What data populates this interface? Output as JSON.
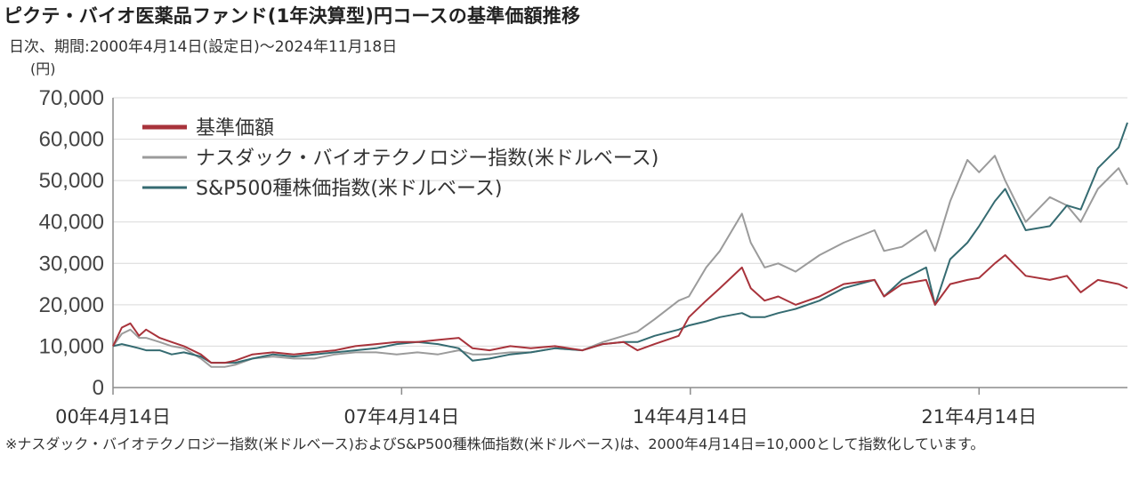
{
  "page": {
    "title": "ピクテ・バイオ医薬品ファンド(1年決算型)円コースの基準価額推移",
    "subtitle": "日次、期間:2000年4月14日(設定日)～2024年11月18日",
    "unit": "(円)",
    "footnote": "※ナスダック・バイオテクノロジー指数(米ドルベース)およびS&P500種株価指数(米ドルベース)は、2000年4月14日=10,000として指数化しています。"
  },
  "colors": {
    "nav": "#a8333b",
    "nasdaq": "#9b9b9b",
    "sp500": "#356b71",
    "grid": "#d9d9d9",
    "axis": "#8c8c8c"
  },
  "chart_data": {
    "type": "line",
    "x_unit": "date",
    "y_unit": "円",
    "ylim": [
      0,
      70000
    ],
    "xlim": [
      "2000-04-14",
      "2024-11-18"
    ],
    "y_ticks": [
      0,
      10000,
      20000,
      30000,
      40000,
      50000,
      60000,
      70000
    ],
    "y_tick_labels": [
      "0",
      "10,000",
      "20,000",
      "30,000",
      "40,000",
      "50,000",
      "60,000",
      "70,000"
    ],
    "x_ticks": [
      "2000-04-14",
      "2007-04-14",
      "2014-04-14",
      "2021-04-14"
    ],
    "x_tick_labels": [
      "00年4月14日",
      "07年4月14日",
      "14年4月14日",
      "21年4月14日"
    ],
    "grid": "horizontal",
    "legend_position": "top-left",
    "series": [
      {
        "name": "基準価額",
        "key": "nav",
        "points": [
          [
            "2000-04-14",
            10000
          ],
          [
            "2000-07-01",
            14500
          ],
          [
            "2000-09-15",
            15500
          ],
          [
            "2000-12-01",
            12500
          ],
          [
            "2001-02-01",
            14000
          ],
          [
            "2001-06-01",
            12000
          ],
          [
            "2001-09-15",
            11000
          ],
          [
            "2002-01-01",
            10000
          ],
          [
            "2002-06-01",
            8000
          ],
          [
            "2002-09-01",
            6000
          ],
          [
            "2003-01-01",
            6000
          ],
          [
            "2003-04-01",
            6500
          ],
          [
            "2003-09-01",
            8000
          ],
          [
            "2004-03-01",
            8500
          ],
          [
            "2004-09-01",
            8000
          ],
          [
            "2005-03-01",
            8500
          ],
          [
            "2005-09-01",
            9000
          ],
          [
            "2006-03-01",
            10000
          ],
          [
            "2006-09-01",
            10500
          ],
          [
            "2007-03-01",
            11000
          ],
          [
            "2007-09-01",
            11000
          ],
          [
            "2008-03-01",
            11500
          ],
          [
            "2008-09-01",
            12000
          ],
          [
            "2009-01-01",
            9500
          ],
          [
            "2009-06-01",
            9000
          ],
          [
            "2009-12-01",
            10000
          ],
          [
            "2010-06-01",
            9500
          ],
          [
            "2011-01-01",
            10000
          ],
          [
            "2011-09-01",
            9000
          ],
          [
            "2012-03-01",
            10500
          ],
          [
            "2012-09-01",
            11000
          ],
          [
            "2013-01-01",
            9000
          ],
          [
            "2013-06-01",
            10500
          ],
          [
            "2014-01-01",
            12500
          ],
          [
            "2014-04-01",
            17000
          ],
          [
            "2014-09-01",
            21000
          ],
          [
            "2015-01-01",
            24000
          ],
          [
            "2015-07-15",
            29000
          ],
          [
            "2015-10-01",
            24000
          ],
          [
            "2016-02-01",
            21000
          ],
          [
            "2016-06-01",
            22000
          ],
          [
            "2016-11-01",
            20000
          ],
          [
            "2017-06-01",
            22000
          ],
          [
            "2018-01-01",
            25000
          ],
          [
            "2018-10-01",
            26000
          ],
          [
            "2018-12-25",
            22000
          ],
          [
            "2019-06-01",
            25000
          ],
          [
            "2020-01-01",
            26000
          ],
          [
            "2020-03-20",
            20000
          ],
          [
            "2020-08-01",
            25000
          ],
          [
            "2021-01-01",
            26000
          ],
          [
            "2021-04-14",
            26500
          ],
          [
            "2021-09-01",
            30000
          ],
          [
            "2021-12-01",
            32000
          ],
          [
            "2022-06-01",
            27000
          ],
          [
            "2023-01-01",
            26000
          ],
          [
            "2023-06-01",
            27000
          ],
          [
            "2023-10-01",
            23000
          ],
          [
            "2024-03-01",
            26000
          ],
          [
            "2024-09-01",
            25000
          ],
          [
            "2024-11-18",
            24000
          ]
        ]
      },
      {
        "name": "ナスダック・バイオテクノロジー指数(米ドルベース)",
        "key": "nasdaq",
        "points": [
          [
            "2000-04-14",
            10000
          ],
          [
            "2000-07-01",
            13000
          ],
          [
            "2000-09-15",
            14000
          ],
          [
            "2000-12-01",
            12000
          ],
          [
            "2001-02-01",
            12000
          ],
          [
            "2001-06-01",
            11000
          ],
          [
            "2001-09-15",
            10000
          ],
          [
            "2002-01-01",
            9500
          ],
          [
            "2002-06-01",
            7000
          ],
          [
            "2002-09-01",
            5000
          ],
          [
            "2003-01-01",
            5000
          ],
          [
            "2003-04-01",
            5500
          ],
          [
            "2003-09-01",
            7000
          ],
          [
            "2004-03-01",
            7500
          ],
          [
            "2004-09-01",
            7000
          ],
          [
            "2005-03-01",
            7000
          ],
          [
            "2005-09-01",
            8000
          ],
          [
            "2006-03-01",
            8500
          ],
          [
            "2006-09-01",
            8500
          ],
          [
            "2007-03-01",
            8000
          ],
          [
            "2007-09-01",
            8500
          ],
          [
            "2008-03-01",
            8000
          ],
          [
            "2008-09-01",
            9000
          ],
          [
            "2009-01-01",
            8000
          ],
          [
            "2009-06-01",
            8000
          ],
          [
            "2009-12-01",
            8500
          ],
          [
            "2010-06-01",
            8500
          ],
          [
            "2011-01-01",
            9500
          ],
          [
            "2011-09-01",
            9000
          ],
          [
            "2012-03-01",
            11000
          ],
          [
            "2012-09-01",
            12500
          ],
          [
            "2013-01-01",
            13500
          ],
          [
            "2013-06-01",
            16500
          ],
          [
            "2014-01-01",
            21000
          ],
          [
            "2014-04-01",
            22000
          ],
          [
            "2014-09-01",
            29000
          ],
          [
            "2015-01-01",
            33000
          ],
          [
            "2015-07-15",
            42000
          ],
          [
            "2015-10-01",
            35000
          ],
          [
            "2016-02-01",
            29000
          ],
          [
            "2016-06-01",
            30000
          ],
          [
            "2016-11-01",
            28000
          ],
          [
            "2017-06-01",
            32000
          ],
          [
            "2018-01-01",
            35000
          ],
          [
            "2018-10-01",
            38000
          ],
          [
            "2018-12-25",
            33000
          ],
          [
            "2019-06-01",
            34000
          ],
          [
            "2020-01-01",
            38000
          ],
          [
            "2020-03-20",
            33000
          ],
          [
            "2020-08-01",
            45000
          ],
          [
            "2021-01-01",
            55000
          ],
          [
            "2021-04-14",
            52000
          ],
          [
            "2021-09-01",
            56000
          ],
          [
            "2021-12-01",
            50000
          ],
          [
            "2022-06-01",
            40000
          ],
          [
            "2023-01-01",
            46000
          ],
          [
            "2023-06-01",
            44000
          ],
          [
            "2023-10-01",
            40000
          ],
          [
            "2024-03-01",
            48000
          ],
          [
            "2024-09-01",
            53000
          ],
          [
            "2024-11-18",
            49000
          ]
        ]
      },
      {
        "name": "S&P500種株価指数(米ドルベース)",
        "key": "sp500",
        "points": [
          [
            "2000-04-14",
            10000
          ],
          [
            "2000-07-01",
            10500
          ],
          [
            "2000-09-15",
            10000
          ],
          [
            "2000-12-01",
            9500
          ],
          [
            "2001-02-01",
            9000
          ],
          [
            "2001-06-01",
            9000
          ],
          [
            "2001-09-15",
            8000
          ],
          [
            "2002-01-01",
            8500
          ],
          [
            "2002-06-01",
            7500
          ],
          [
            "2002-09-01",
            6000
          ],
          [
            "2003-01-01",
            6000
          ],
          [
            "2003-04-01",
            6000
          ],
          [
            "2003-09-01",
            7000
          ],
          [
            "2004-03-01",
            8000
          ],
          [
            "2004-09-01",
            7500
          ],
          [
            "2005-03-01",
            8000
          ],
          [
            "2005-09-01",
            8500
          ],
          [
            "2006-03-01",
            9000
          ],
          [
            "2006-09-01",
            9500
          ],
          [
            "2007-03-01",
            10500
          ],
          [
            "2007-09-01",
            11000
          ],
          [
            "2008-03-01",
            10500
          ],
          [
            "2008-09-01",
            9500
          ],
          [
            "2009-01-01",
            6500
          ],
          [
            "2009-06-01",
            7000
          ],
          [
            "2009-12-01",
            8000
          ],
          [
            "2010-06-01",
            8500
          ],
          [
            "2011-01-01",
            9500
          ],
          [
            "2011-09-01",
            9000
          ],
          [
            "2012-03-01",
            10500
          ],
          [
            "2012-09-01",
            11000
          ],
          [
            "2013-01-01",
            11000
          ],
          [
            "2013-06-01",
            12500
          ],
          [
            "2014-01-01",
            14000
          ],
          [
            "2014-04-01",
            15000
          ],
          [
            "2014-09-01",
            16000
          ],
          [
            "2015-01-01",
            17000
          ],
          [
            "2015-07-15",
            18000
          ],
          [
            "2015-10-01",
            17000
          ],
          [
            "2016-02-01",
            17000
          ],
          [
            "2016-06-01",
            18000
          ],
          [
            "2016-11-01",
            19000
          ],
          [
            "2017-06-01",
            21000
          ],
          [
            "2018-01-01",
            24000
          ],
          [
            "2018-10-01",
            26000
          ],
          [
            "2018-12-25",
            22000
          ],
          [
            "2019-06-01",
            26000
          ],
          [
            "2020-01-01",
            29000
          ],
          [
            "2020-03-20",
            20000
          ],
          [
            "2020-08-01",
            31000
          ],
          [
            "2021-01-01",
            35000
          ],
          [
            "2021-04-14",
            39000
          ],
          [
            "2021-09-01",
            45000
          ],
          [
            "2021-12-01",
            48000
          ],
          [
            "2022-06-01",
            38000
          ],
          [
            "2023-01-01",
            39000
          ],
          [
            "2023-06-01",
            44000
          ],
          [
            "2023-10-01",
            43000
          ],
          [
            "2024-03-01",
            53000
          ],
          [
            "2024-09-01",
            58000
          ],
          [
            "2024-11-18",
            64000
          ]
        ]
      }
    ]
  }
}
